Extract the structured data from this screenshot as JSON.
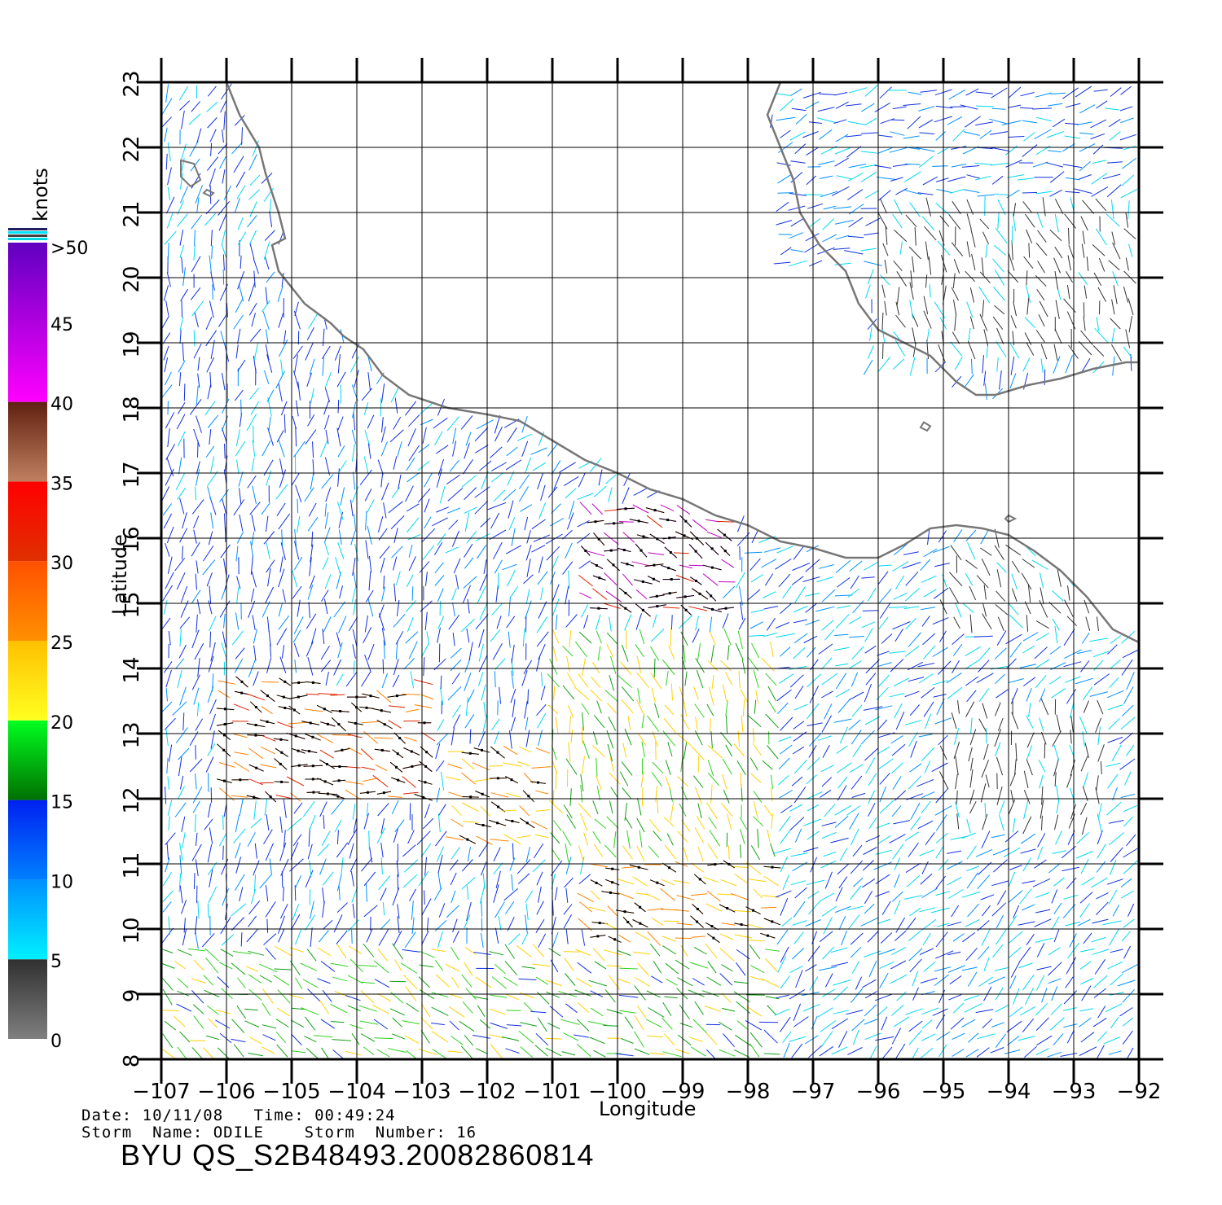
{
  "colorbar": {
    "unit_label": "knots",
    "top_label": ">50",
    "labels": [
      "0",
      "5",
      "10",
      "15",
      "20",
      "25",
      "30",
      "35",
      "40",
      "45"
    ],
    "segments": [
      {
        "from": 0,
        "to": 5,
        "colors": [
          "#7f7f7f",
          "#303030"
        ]
      },
      {
        "from": 5,
        "to": 10,
        "colors": [
          "#00f0ff",
          "#0090ff"
        ]
      },
      {
        "from": 10,
        "to": 15,
        "colors": [
          "#0080ff",
          "#0020f0"
        ]
      },
      {
        "from": 15,
        "to": 20,
        "colors": [
          "#007000",
          "#00ff20"
        ]
      },
      {
        "from": 20,
        "to": 25,
        "colors": [
          "#ffff20",
          "#ffc000"
        ]
      },
      {
        "from": 25,
        "to": 30,
        "colors": [
          "#ff9000",
          "#ff5000"
        ]
      },
      {
        "from": 30,
        "to": 35,
        "colors": [
          "#e03000",
          "#ff0000"
        ]
      },
      {
        "from": 35,
        "to": 40,
        "colors": [
          "#c08060",
          "#602010"
        ]
      },
      {
        "from": 40,
        "to": 50,
        "colors": [
          "#ff00ff",
          "#6000c0"
        ]
      }
    ]
  },
  "map": {
    "lon_range": [
      -107,
      -92
    ],
    "lat_range": [
      8,
      23
    ],
    "lon_ticks": [
      "-107",
      "-106",
      "-105",
      "-104",
      "-103",
      "-102",
      "-101",
      "-100",
      "-99",
      "-98",
      "-97",
      "-96",
      "-95",
      "-94",
      "-93",
      "-92"
    ],
    "lat_ticks": [
      "8",
      "9",
      "10",
      "11",
      "12",
      "13",
      "14",
      "15",
      "16",
      "17",
      "18",
      "19",
      "20",
      "21",
      "22",
      "23"
    ],
    "xlabel": "Longitude",
    "ylabel": "Latitude",
    "coast_color": "#777777",
    "coastline_mainland": [
      [
        -106,
        23
      ],
      [
        -105.8,
        22.5
      ],
      [
        -105.5,
        22
      ],
      [
        -105.4,
        21.6
      ],
      [
        -105.3,
        21.3
      ],
      [
        -105.2,
        21
      ],
      [
        -105.1,
        20.6
      ],
      [
        -105.3,
        20.5
      ],
      [
        -105.2,
        20.1
      ],
      [
        -104.8,
        19.6
      ],
      [
        -104.4,
        19.3
      ],
      [
        -104.2,
        19.1
      ],
      [
        -103.9,
        18.9
      ],
      [
        -103.6,
        18.5
      ],
      [
        -103.2,
        18.2
      ],
      [
        -102.6,
        18
      ],
      [
        -102,
        17.9
      ],
      [
        -101.5,
        17.8
      ],
      [
        -101,
        17.5
      ],
      [
        -100.5,
        17.2
      ],
      [
        -100,
        17
      ],
      [
        -99.5,
        16.75
      ],
      [
        -99,
        16.6
      ],
      [
        -98.5,
        16.35
      ],
      [
        -98,
        16.2
      ],
      [
        -97.5,
        15.95
      ],
      [
        -97,
        15.85
      ],
      [
        -96.5,
        15.7
      ],
      [
        -96,
        15.7
      ],
      [
        -95.6,
        15.9
      ],
      [
        -95.2,
        16.15
      ],
      [
        -94.8,
        16.2
      ],
      [
        -94.4,
        16.15
      ],
      [
        -94,
        16.05
      ],
      [
        -93.6,
        15.8
      ],
      [
        -93.2,
        15.5
      ],
      [
        -92.8,
        15.1
      ],
      [
        -92.4,
        14.6
      ],
      [
        -92,
        14.4
      ]
    ],
    "coastline_gulf": [
      [
        -97.5,
        23
      ],
      [
        -97.7,
        22.5
      ],
      [
        -97.5,
        22
      ],
      [
        -97.3,
        21.5
      ],
      [
        -97.2,
        21
      ],
      [
        -96.9,
        20.5
      ],
      [
        -96.5,
        20.1
      ],
      [
        -96.3,
        19.6
      ],
      [
        -96,
        19.2
      ],
      [
        -95.6,
        19.0
      ],
      [
        -95.2,
        18.8
      ],
      [
        -94.8,
        18.4
      ],
      [
        -94.5,
        18.2
      ],
      [
        -94.2,
        18.2
      ],
      [
        -93.7,
        18.35
      ],
      [
        -93.2,
        18.45
      ],
      [
        -92.7,
        18.6
      ],
      [
        -92.2,
        18.7
      ],
      [
        -92,
        18.7
      ]
    ],
    "islands": [
      [
        [
          -106.7,
          21.8
        ],
        [
          -106.5,
          21.75
        ],
        [
          -106.4,
          21.5
        ],
        [
          -106.55,
          21.4
        ],
        [
          -106.7,
          21.55
        ],
        [
          -106.7,
          21.8
        ]
      ],
      [
        [
          -106.3,
          21.35
        ],
        [
          -106.2,
          21.3
        ],
        [
          -106.25,
          21.25
        ],
        [
          -106.35,
          21.3
        ],
        [
          -106.3,
          21.35
        ]
      ],
      [
        [
          -95.3,
          17.78
        ],
        [
          -95.2,
          17.72
        ],
        [
          -95.25,
          17.65
        ],
        [
          -95.35,
          17.7
        ],
        [
          -95.3,
          17.78
        ]
      ],
      [
        [
          -94.0,
          16.35
        ],
        [
          -93.9,
          16.3
        ],
        [
          -94.0,
          16.25
        ],
        [
          -94.05,
          16.3
        ],
        [
          -94.0,
          16.35
        ]
      ]
    ],
    "wind_regimes": [
      {
        "id": "gulf-bay",
        "lon": [
          -97.5,
          -92
        ],
        "lat": [
          20.2,
          23
        ],
        "dir": 255,
        "speed": 10
      },
      {
        "id": "yucatan-land",
        "lon": [
          -96,
          -92
        ],
        "lat": [
          18.7,
          21.2
        ],
        "dir": 160,
        "speed": 3
      },
      {
        "id": "coastal-north",
        "lon": [
          -107,
          -103.5
        ],
        "lat": [
          14,
          20.5
        ],
        "dir": 190,
        "speed": 11
      },
      {
        "id": "open-northwest",
        "lon": [
          -103.5,
          -99
        ],
        "lat": [
          15.5,
          18
        ],
        "dir": 220,
        "speed": 10
      },
      {
        "id": "tehuantepec-jet",
        "lon": [
          -100.5,
          -98.3
        ],
        "lat": [
          14.8,
          16.5
        ],
        "dir": 290,
        "speed": 36
      },
      {
        "id": "east-coastal",
        "lon": [
          -98,
          -92
        ],
        "lat": [
          14,
          16
        ],
        "dir": 240,
        "speed": 9
      },
      {
        "id": "east-land",
        "lon": [
          -95,
          -92
        ],
        "lat": [
          14.5,
          16
        ],
        "dir": 150,
        "speed": 3
      },
      {
        "id": "storm-core-west",
        "lon": [
          -106.2,
          -102.8
        ],
        "lat": [
          12,
          13.8
        ],
        "dir": 105,
        "speed": 30
      },
      {
        "id": "storm-core-mid",
        "lon": [
          -102.6,
          -100.8
        ],
        "lat": [
          11.3,
          12.8
        ],
        "dir": 110,
        "speed": 26
      },
      {
        "id": "storm-east-band",
        "lon": [
          -100.5,
          -97.5
        ],
        "lat": [
          9.5,
          11
        ],
        "dir": 110,
        "speed": 25
      },
      {
        "id": "south-band",
        "lon": [
          -107,
          -97
        ],
        "lat": [
          8,
          9.8
        ],
        "dir": 120,
        "speed": 18
      },
      {
        "id": "central-mixed",
        "lon": [
          -101,
          -97.5
        ],
        "lat": [
          11,
          14.5
        ],
        "dir": 160,
        "speed": 20
      },
      {
        "id": "east-open",
        "lon": [
          -97.5,
          -92
        ],
        "lat": [
          8,
          14
        ],
        "dir": 230,
        "speed": 9
      },
      {
        "id": "east-calm",
        "lon": [
          -95,
          -92.5
        ],
        "lat": [
          11.5,
          13.5
        ],
        "dir": 180,
        "speed": 3
      }
    ]
  },
  "footer": {
    "line1": "Date: 10/11/08   Time: 00:49:24",
    "line2": "Storm  Name: ODILE    Storm  Number: 16",
    "title": "BYU  QS_S2B48493.20082860814"
  }
}
